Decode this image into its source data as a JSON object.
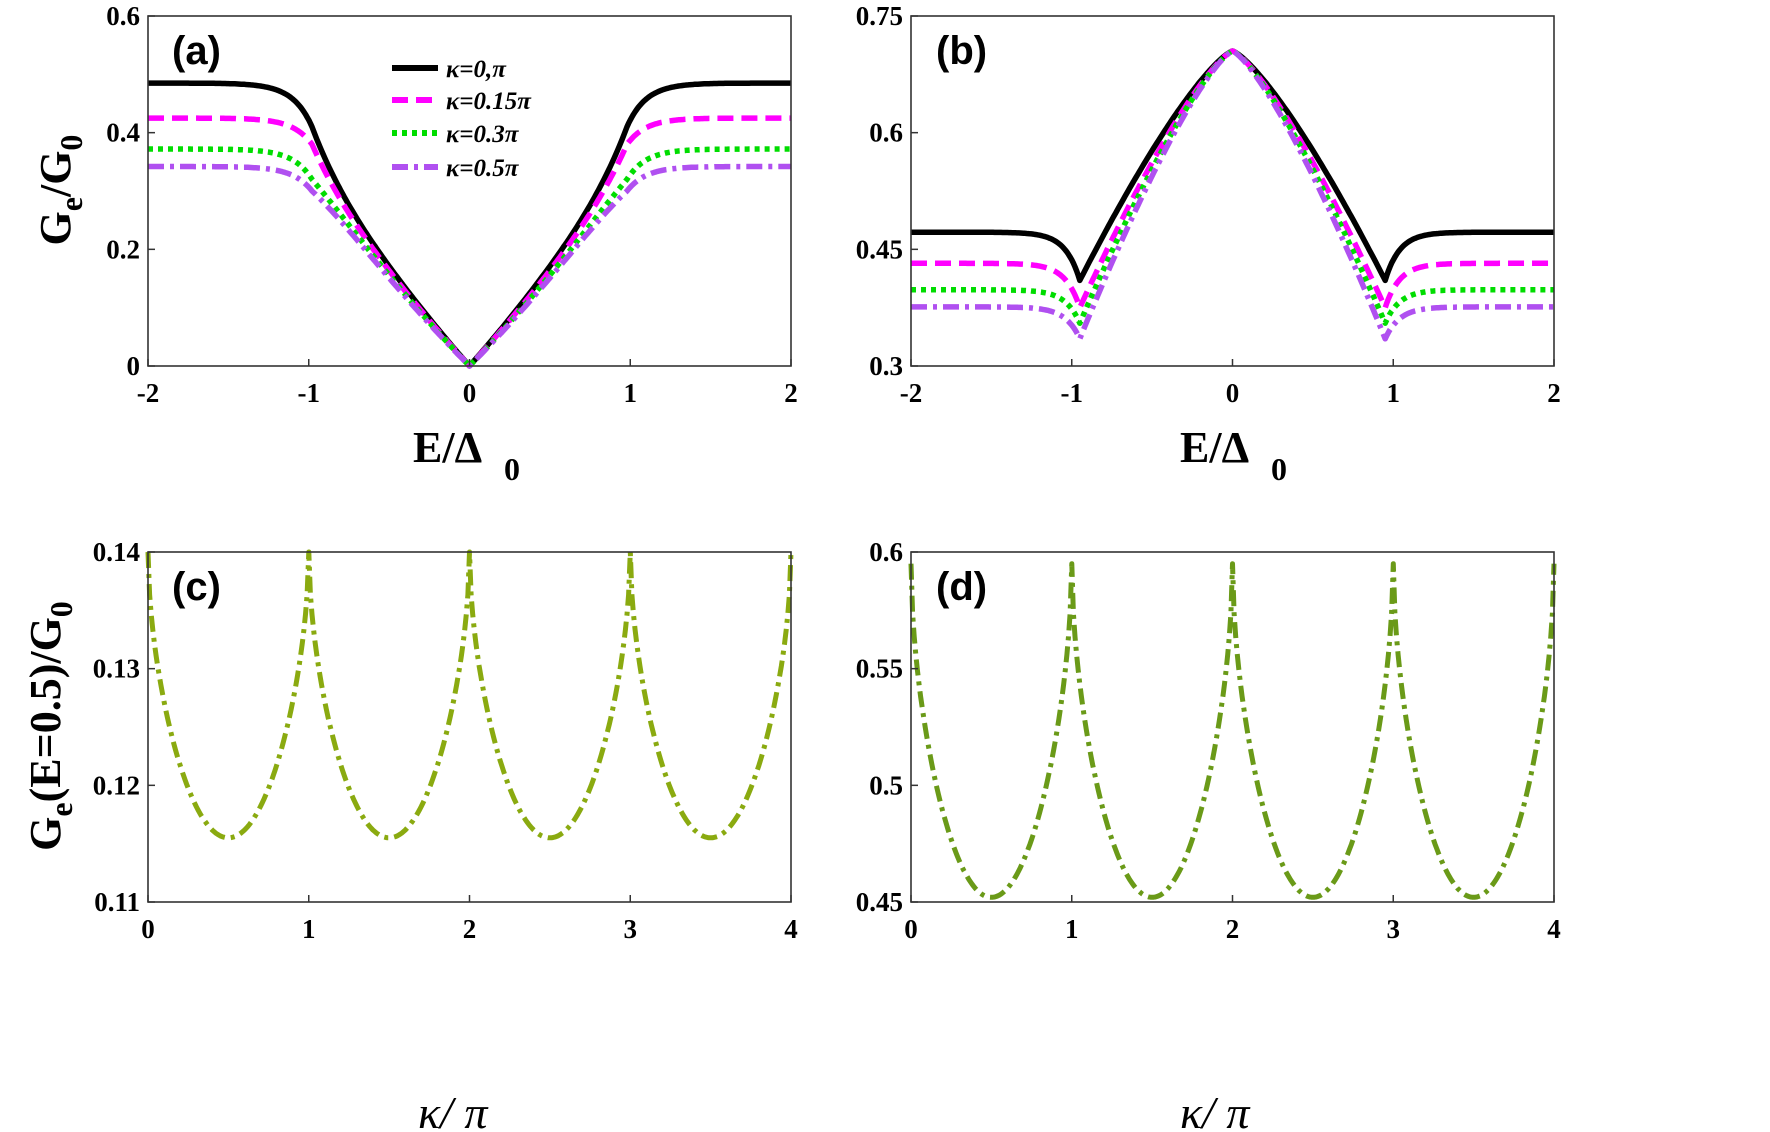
{
  "chart_data": [
    {
      "type": "line",
      "panel_label": "(a)",
      "xlabel": "E/Δ",
      "xlabel_sub": "0",
      "ylabel": "G",
      "ylabel_sub": "e",
      "ylabel_rest": "/G",
      "ylabel_sub2": "0",
      "xlim": [
        -2,
        2
      ],
      "ylim": [
        0,
        0.6
      ],
      "xticks": [
        "-2",
        "-1",
        "0",
        "1",
        "2"
      ],
      "yticks": [
        "0",
        "0.2",
        "0.4",
        "0.6"
      ],
      "legend": {
        "position": "top-center"
      },
      "series": [
        {
          "name": "κ=0,π",
          "color": "#000000",
          "style": "solid",
          "plateau": 0.485,
          "knee": 0.41,
          "slope": 0.36,
          "dip": null
        },
        {
          "name": "κ=0.15π",
          "color": "#ff00ff",
          "style": "dashed",
          "plateau": 0.425,
          "knee": 0.38,
          "slope": 0.345,
          "dip": null
        },
        {
          "name": "κ=0.3π",
          "color": "#00dd00",
          "style": "dotted",
          "plateau": 0.372,
          "knee": 0.32,
          "slope": 0.33,
          "dip": null
        },
        {
          "name": "κ=0.5π",
          "color": "#b050f0",
          "style": "dashdot",
          "plateau": 0.342,
          "knee": 0.3,
          "slope": 0.32,
          "dip": null
        }
      ]
    },
    {
      "type": "line",
      "panel_label": "(b)",
      "xlabel": "E/Δ",
      "xlabel_sub": "0",
      "xlim": [
        -2,
        2
      ],
      "ylim": [
        0.3,
        0.75
      ],
      "xticks": [
        "-2",
        "-1",
        "0",
        "1",
        "2"
      ],
      "yticks": [
        "0.3",
        "0.45",
        "0.6",
        "0.75"
      ],
      "series": [
        {
          "name": "κ=0,π",
          "color": "#000000",
          "style": "solid",
          "peak": 0.705,
          "plateau": 0.472,
          "dip": 0.41
        },
        {
          "name": "κ=0.15π",
          "color": "#ff00ff",
          "style": "dashed",
          "peak": 0.705,
          "plateau": 0.432,
          "dip": 0.375
        },
        {
          "name": "κ=0.3π",
          "color": "#00dd00",
          "style": "dotted",
          "peak": 0.705,
          "plateau": 0.398,
          "dip": 0.355
        },
        {
          "name": "κ=0.5π",
          "color": "#b050f0",
          "style": "dashdot",
          "peak": 0.705,
          "plateau": 0.376,
          "dip": 0.335
        }
      ]
    },
    {
      "type": "line",
      "panel_label": "(c)",
      "xlabel": "κ/ π",
      "ylabel": "G",
      "ylabel_sub": "e",
      "ylabel_rest": "(E=0.5)/G",
      "ylabel_sub2": "0",
      "xlim": [
        0,
        4
      ],
      "ylim": [
        0.11,
        0.14
      ],
      "xticks": [
        "0",
        "1",
        "2",
        "3",
        "4"
      ],
      "yticks": [
        "0.11",
        "0.12",
        "0.13",
        "0.14"
      ],
      "series": [
        {
          "name": "G_e(E=0.5)/G_0",
          "color": "#8aaa10",
          "style": "dashdot",
          "max": 0.14,
          "min": 0.1155,
          "period": 1
        }
      ]
    },
    {
      "type": "line",
      "panel_label": "(d)",
      "xlabel": "κ/ π",
      "xlim": [
        0,
        4
      ],
      "ylim": [
        0.45,
        0.6
      ],
      "xticks": [
        "0",
        "1",
        "2",
        "3",
        "4"
      ],
      "yticks": [
        "0.45",
        "0.5",
        "0.55",
        "0.6"
      ],
      "series": [
        {
          "name": "G_e(E=0.5)/G_0",
          "color": "#6a9a18",
          "style": "dashdot",
          "max": 0.595,
          "min": 0.452,
          "period": 1
        }
      ]
    }
  ]
}
